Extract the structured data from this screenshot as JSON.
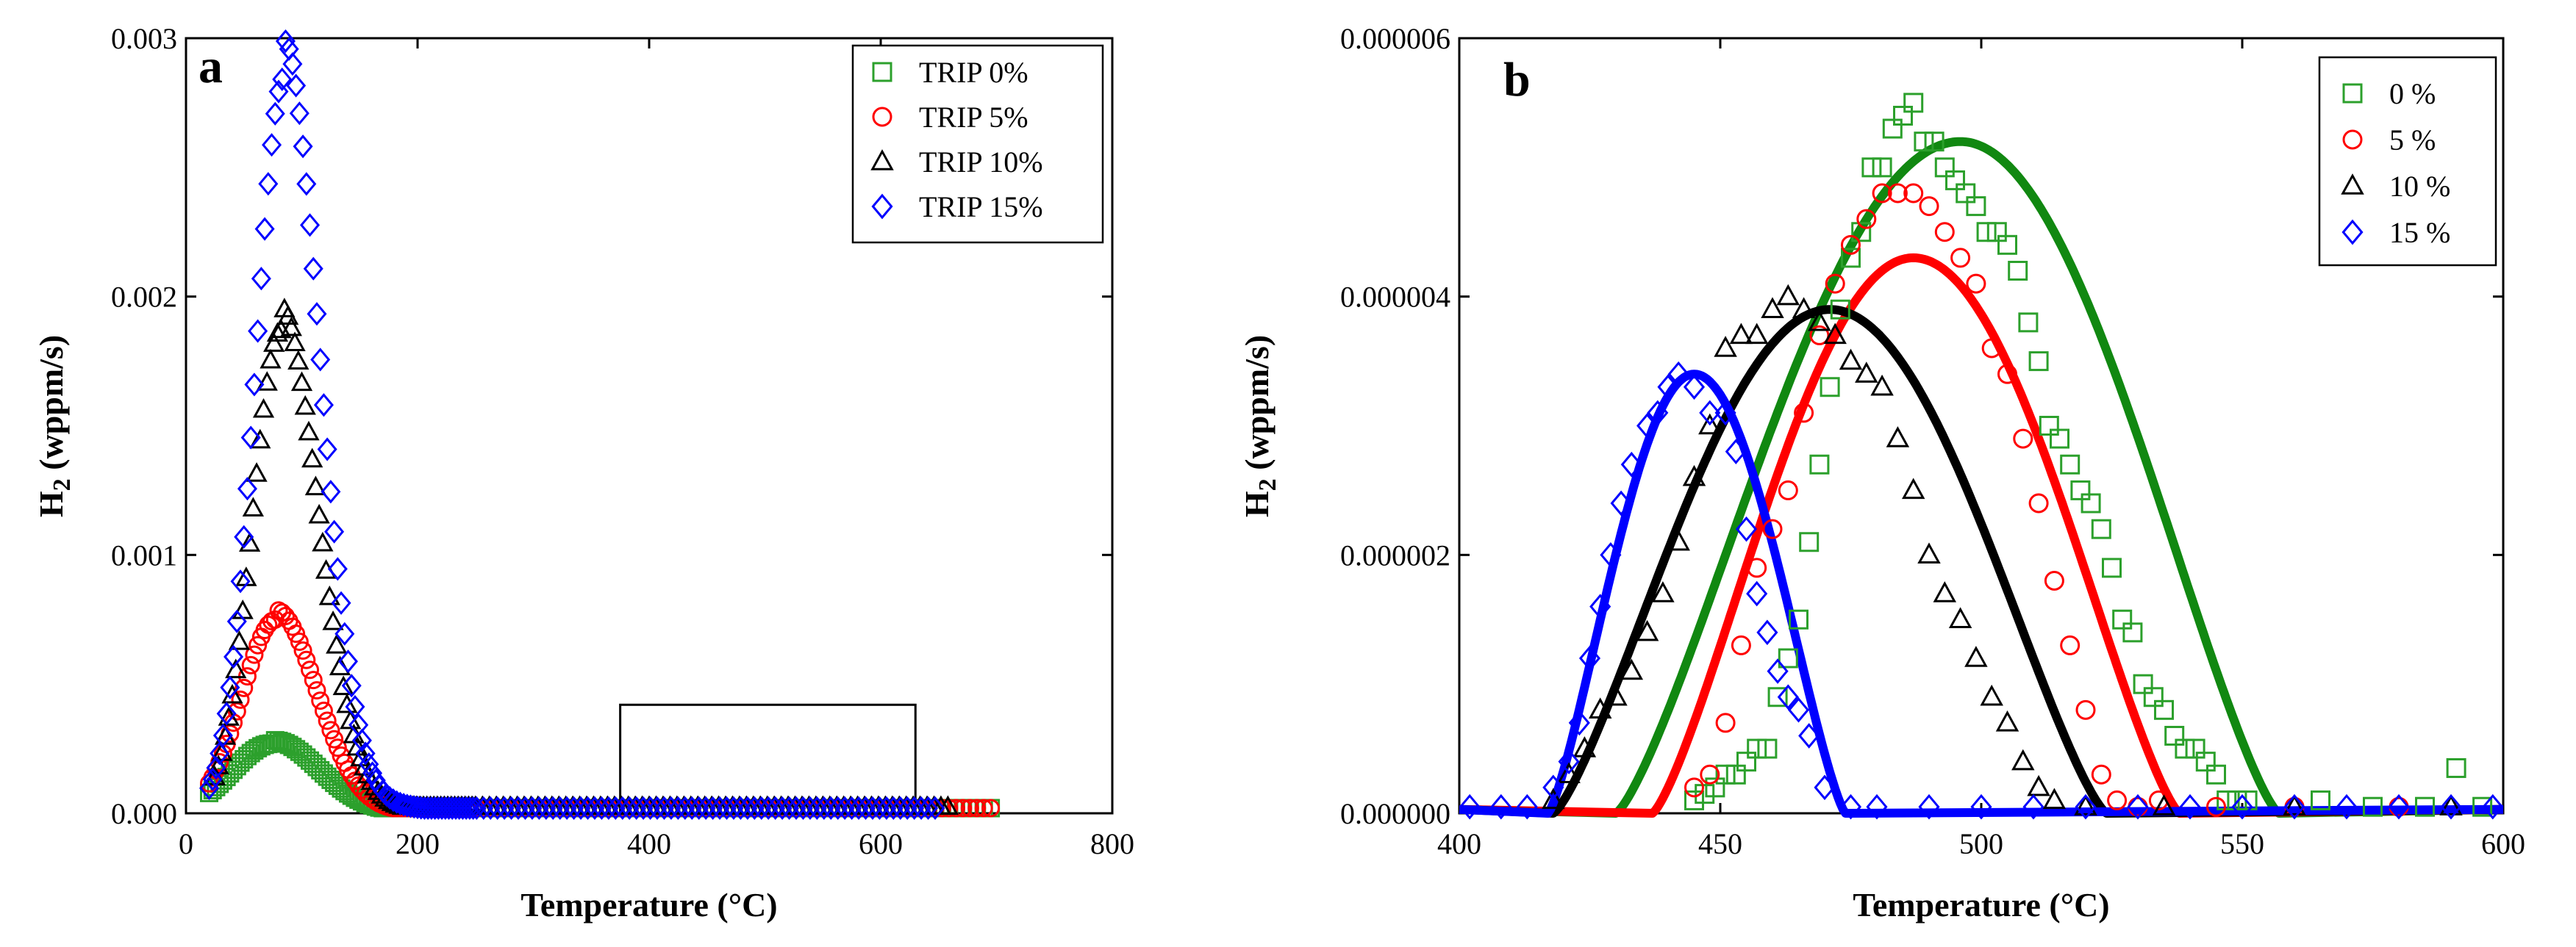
{
  "colors": {
    "trip0": "#2ca02c",
    "trip5": "#ff0000",
    "trip10": "#000000",
    "trip15": "#0000ff",
    "fit_green": "#118811",
    "fit_red": "#ff0000",
    "fit_black": "#000000",
    "fit_blue": "#0000ff"
  },
  "chart_data": [
    {
      "type": "scatter",
      "panel_label": "a",
      "xlabel": "Temperature (°C)",
      "ylabel_main": "H",
      "ylabel_sub": "2",
      "ylabel_rest": " (wppm/s)",
      "xlim": [
        0,
        800
      ],
      "ylim": [
        0,
        0.003
      ],
      "xticks": [
        0,
        200,
        400,
        600,
        800
      ],
      "xtick_labels": [
        "0",
        "200",
        "400",
        "600",
        "800"
      ],
      "yticks": [
        0,
        0.001,
        0.002,
        0.003
      ],
      "ytick_labels": [
        "0.000",
        "0.001",
        "0.002",
        "0.003"
      ],
      "legend_position": "top-right",
      "annotation": "zoom rectangle from 375 to 630 °C, 0 to 0.00042 wppm/s",
      "zoom_box": {
        "x": [
          375,
          630
        ],
        "y": [
          0,
          0.00042
        ]
      },
      "series": [
        {
          "name": "TRIP 0%",
          "marker": "square",
          "color_key": "trip0",
          "peak_x": 75,
          "peak_y": 0.00027,
          "width_left": 35,
          "width_right": 40,
          "x_start": 20,
          "x_end": 700,
          "tail_y": 2e-05
        },
        {
          "name": "TRIP 5%",
          "marker": "circle",
          "color_key": "trip5",
          "peak_x": 78,
          "peak_y": 0.00075,
          "width_left": 30,
          "width_right": 35,
          "x_start": 20,
          "x_end": 700,
          "tail_y": 2e-05
        },
        {
          "name": "TRIP 10%",
          "marker": "triangle",
          "color_key": "trip10",
          "peak_x": 82,
          "peak_y": 0.00187,
          "width_left": 25,
          "width_right": 32,
          "x_start": 25,
          "x_end": 660,
          "tail_y": 2.5e-05
        },
        {
          "name": "TRIP 15%",
          "marker": "diamond",
          "color_key": "trip15",
          "peak_x": 85,
          "peak_y": 0.00285,
          "width_left": 25,
          "width_right": 30,
          "x_start": 20,
          "x_end": 650,
          "tail_y": 2e-05
        }
      ]
    },
    {
      "type": "scatter",
      "panel_label": "b",
      "xlabel": "Temperature (°C)",
      "ylabel_main": "H",
      "ylabel_sub": "2",
      "ylabel_rest": " (wppm/s)",
      "xlim": [
        400,
        600
      ],
      "ylim": [
        0,
        6e-06
      ],
      "xticks": [
        400,
        450,
        500,
        550,
        600
      ],
      "xtick_labels": [
        "400",
        "450",
        "500",
        "550",
        "600"
      ],
      "yticks": [
        0,
        2e-06,
        4e-06,
        6e-06
      ],
      "ytick_labels": [
        "0.000000",
        "0.000002",
        "0.000004",
        "0.000006"
      ],
      "legend_position": "top-right",
      "series": [
        {
          "name": "0 %",
          "marker": "square",
          "color_key": "trip0",
          "points": [
            [
              445,
              1e-07
            ],
            [
              447,
              1.5e-07
            ],
            [
              449,
              2e-07
            ],
            [
              451,
              3e-07
            ],
            [
              453,
              3e-07
            ],
            [
              455,
              4e-07
            ],
            [
              457,
              5e-07
            ],
            [
              459,
              5e-07
            ],
            [
              461,
              9e-07
            ],
            [
              463,
              1.2e-06
            ],
            [
              465,
              1.5e-06
            ],
            [
              467,
              2.1e-06
            ],
            [
              469,
              2.7e-06
            ],
            [
              471,
              3.3e-06
            ],
            [
              473,
              3.9e-06
            ],
            [
              475,
              4.3e-06
            ],
            [
              477,
              4.5e-06
            ],
            [
              479,
              5e-06
            ],
            [
              481,
              5e-06
            ],
            [
              483,
              5.3e-06
            ],
            [
              485,
              5.4e-06
            ],
            [
              487,
              5.5e-06
            ],
            [
              489,
              5.2e-06
            ],
            [
              491,
              5.2e-06
            ],
            [
              493,
              5e-06
            ],
            [
              495,
              4.9e-06
            ],
            [
              497,
              4.8e-06
            ],
            [
              499,
              4.7e-06
            ],
            [
              501,
              4.5e-06
            ],
            [
              503,
              4.5e-06
            ],
            [
              505,
              4.4e-06
            ],
            [
              507,
              4.2e-06
            ],
            [
              509,
              3.8e-06
            ],
            [
              511,
              3.5e-06
            ],
            [
              513,
              3e-06
            ],
            [
              515,
              2.9e-06
            ],
            [
              517,
              2.7e-06
            ],
            [
              519,
              2.5e-06
            ],
            [
              521,
              2.4e-06
            ],
            [
              523,
              2.2e-06
            ],
            [
              525,
              1.9e-06
            ],
            [
              527,
              1.5e-06
            ],
            [
              529,
              1.4e-06
            ],
            [
              531,
              1e-06
            ],
            [
              533,
              9e-07
            ],
            [
              535,
              8e-07
            ],
            [
              537,
              6e-07
            ],
            [
              539,
              5e-07
            ],
            [
              541,
              5e-07
            ],
            [
              543,
              4e-07
            ],
            [
              545,
              3e-07
            ],
            [
              547,
              1e-07
            ],
            [
              549,
              1e-07
            ],
            [
              551,
              1e-07
            ],
            [
              565,
              1e-07
            ],
            [
              575,
              5e-08
            ],
            [
              585,
              5e-08
            ],
            [
              591,
              3.5e-07
            ],
            [
              596,
              5e-08
            ]
          ]
        },
        {
          "name": "5 %",
          "marker": "circle",
          "color_key": "trip5",
          "points": [
            [
              445,
              2e-07
            ],
            [
              448,
              3e-07
            ],
            [
              451,
              7e-07
            ],
            [
              454,
              1.3e-06
            ],
            [
              457,
              1.9e-06
            ],
            [
              460,
              2.2e-06
            ],
            [
              463,
              2.5e-06
            ],
            [
              466,
              3.1e-06
            ],
            [
              469,
              3.7e-06
            ],
            [
              472,
              4.1e-06
            ],
            [
              475,
              4.4e-06
            ],
            [
              478,
              4.6e-06
            ],
            [
              481,
              4.8e-06
            ],
            [
              484,
              4.8e-06
            ],
            [
              487,
              4.8e-06
            ],
            [
              490,
              4.7e-06
            ],
            [
              493,
              4.5e-06
            ],
            [
              496,
              4.3e-06
            ],
            [
              499,
              4.1e-06
            ],
            [
              502,
              3.6e-06
            ],
            [
              505,
              3.4e-06
            ],
            [
              508,
              2.9e-06
            ],
            [
              511,
              2.4e-06
            ],
            [
              514,
              1.8e-06
            ],
            [
              517,
              1.3e-06
            ],
            [
              520,
              8e-07
            ],
            [
              523,
              3e-07
            ],
            [
              526,
              1e-07
            ],
            [
              530,
              5e-08
            ],
            [
              534,
              1e-07
            ],
            [
              545,
              5e-08
            ],
            [
              560,
              5e-08
            ],
            [
              580,
              5e-08
            ]
          ]
        },
        {
          "name": "10 %",
          "marker": "triangle",
          "color_key": "trip10",
          "points": [
            [
              418,
              1e-07
            ],
            [
              421,
              3e-07
            ],
            [
              424,
              5e-07
            ],
            [
              427,
              8e-07
            ],
            [
              430,
              9e-07
            ],
            [
              433,
              1.1e-06
            ],
            [
              436,
              1.4e-06
            ],
            [
              439,
              1.7e-06
            ],
            [
              442,
              2.1e-06
            ],
            [
              445,
              2.6e-06
            ],
            [
              448,
              3e-06
            ],
            [
              451,
              3.6e-06
            ],
            [
              454,
              3.7e-06
            ],
            [
              457,
              3.7e-06
            ],
            [
              460,
              3.9e-06
            ],
            [
              463,
              4e-06
            ],
            [
              466,
              3.9e-06
            ],
            [
              469,
              3.8e-06
            ],
            [
              472,
              3.7e-06
            ],
            [
              475,
              3.5e-06
            ],
            [
              478,
              3.4e-06
            ],
            [
              481,
              3.3e-06
            ],
            [
              484,
              2.9e-06
            ],
            [
              487,
              2.5e-06
            ],
            [
              490,
              2e-06
            ],
            [
              493,
              1.7e-06
            ],
            [
              496,
              1.5e-06
            ],
            [
              499,
              1.2e-06
            ],
            [
              502,
              9e-07
            ],
            [
              505,
              7e-07
            ],
            [
              508,
              4e-07
            ],
            [
              511,
              2e-07
            ],
            [
              514,
              1e-07
            ],
            [
              520,
              5e-08
            ],
            [
              535,
              5e-08
            ],
            [
              560,
              5e-08
            ],
            [
              590,
              5e-08
            ]
          ]
        },
        {
          "name": "15 %",
          "marker": "diamond",
          "color_key": "trip15",
          "points": [
            [
              402,
              5e-08
            ],
            [
              408,
              5e-08
            ],
            [
              413,
              5e-08
            ],
            [
              418,
              2e-07
            ],
            [
              421,
              4e-07
            ],
            [
              423,
              7e-07
            ],
            [
              425,
              1.2e-06
            ],
            [
              427,
              1.6e-06
            ],
            [
              429,
              2e-06
            ],
            [
              431,
              2.4e-06
            ],
            [
              433,
              2.7e-06
            ],
            [
              436,
              3e-06
            ],
            [
              438,
              3.1e-06
            ],
            [
              440,
              3.3e-06
            ],
            [
              442,
              3.4e-06
            ],
            [
              445,
              3.3e-06
            ],
            [
              448,
              3.1e-06
            ],
            [
              451,
              3.1e-06
            ],
            [
              453,
              2.8e-06
            ],
            [
              455,
              2.2e-06
            ],
            [
              457,
              1.7e-06
            ],
            [
              459,
              1.4e-06
            ],
            [
              461,
              1.1e-06
            ],
            [
              463,
              9e-07
            ],
            [
              465,
              8e-07
            ],
            [
              467,
              6e-07
            ],
            [
              470,
              2e-07
            ],
            [
              475,
              5e-08
            ],
            [
              480,
              5e-08
            ],
            [
              490,
              5e-08
            ],
            [
              500,
              5e-08
            ],
            [
              510,
              5e-08
            ],
            [
              520,
              5e-08
            ],
            [
              530,
              5e-08
            ],
            [
              540,
              5e-08
            ],
            [
              550,
              5e-08
            ],
            [
              560,
              5e-08
            ],
            [
              570,
              5e-08
            ],
            [
              580,
              5e-08
            ],
            [
              590,
              5e-08
            ],
            [
              598,
              5e-08
            ]
          ]
        }
      ],
      "fits": [
        {
          "name": "0 % fit",
          "color_key": "fit_green",
          "x0": 430,
          "x_peak": 496,
          "x1": 557,
          "peak_y": 5.2e-06
        },
        {
          "name": "5 % fit",
          "color_key": "fit_red",
          "x0": 437,
          "x_peak": 487,
          "x1": 538,
          "peak_y": 4.3e-06
        },
        {
          "name": "10 % fit",
          "color_key": "fit_black",
          "x0": 418,
          "x_peak": 471,
          "x1": 524,
          "peak_y": 3.9e-06
        },
        {
          "name": "15 % fit",
          "color_key": "fit_blue",
          "x0": 417,
          "x_peak": 445,
          "x1": 474,
          "peak_y": 3.4e-06
        }
      ]
    }
  ]
}
